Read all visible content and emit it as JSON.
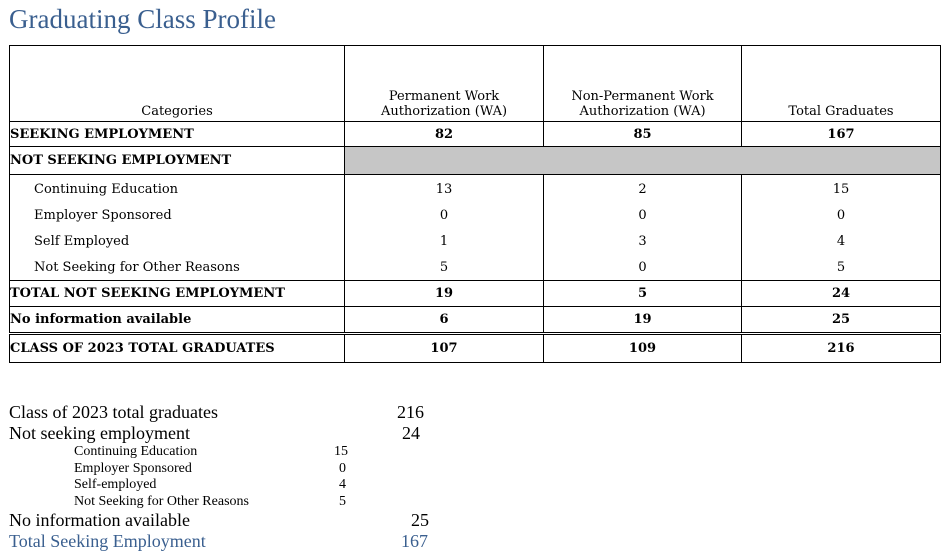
{
  "title": "Graduating Class Profile",
  "table": {
    "headers": {
      "categories": "Categories",
      "permanent": "Permanent Work Authorization (WA)",
      "non_permanent": "Non-Permanent Work Authorization (WA)",
      "total": "Total Graduates"
    },
    "seeking": {
      "label": "SEEKING EMPLOYMENT",
      "permanent": "82",
      "non_permanent": "85",
      "total": "167"
    },
    "not_seeking_header": "NOT SEEKING EMPLOYMENT",
    "not_seeking_rows": [
      {
        "label": "Continuing Education",
        "permanent": "13",
        "non_permanent": "2",
        "total": "15"
      },
      {
        "label": "Employer Sponsored",
        "permanent": "0",
        "non_permanent": "0",
        "total": "0"
      },
      {
        "label": "Self Employed",
        "permanent": "1",
        "non_permanent": "3",
        "total": "4"
      },
      {
        "label": "Not Seeking for Other Reasons",
        "permanent": "5",
        "non_permanent": "0",
        "total": "5"
      }
    ],
    "total_not_seeking": {
      "label": "TOTAL NOT SEEKING EMPLOYMENT",
      "permanent": "19",
      "non_permanent": "5",
      "total": "24"
    },
    "no_info": {
      "label": "No information available",
      "permanent": "6",
      "non_permanent": "19",
      "total": "25"
    },
    "class_total": {
      "label": "CLASS OF 2023 TOTAL GRADUATES",
      "permanent": "107",
      "non_permanent": "109",
      "total": "216"
    }
  },
  "summary": {
    "total_graduates": {
      "label": "Class of 2023 total graduates",
      "value": "216"
    },
    "not_seeking": {
      "label": "Not seeking employment",
      "value": "24"
    },
    "sub_items": [
      {
        "label": "Continuing Education",
        "value": "15"
      },
      {
        "label": "Employer Sponsored",
        "value": "0"
      },
      {
        "label": "Self-employed",
        "value": "4"
      },
      {
        "label": "Not Seeking for Other Reasons",
        "value": "5"
      }
    ],
    "no_info": {
      "label": "No information available",
      "value": "25"
    },
    "total_seeking": {
      "label": "Total Seeking Employment",
      "value": "167"
    }
  },
  "colors": {
    "title": "#3a5f8f",
    "shaded_cell": "#c6c6c6"
  }
}
